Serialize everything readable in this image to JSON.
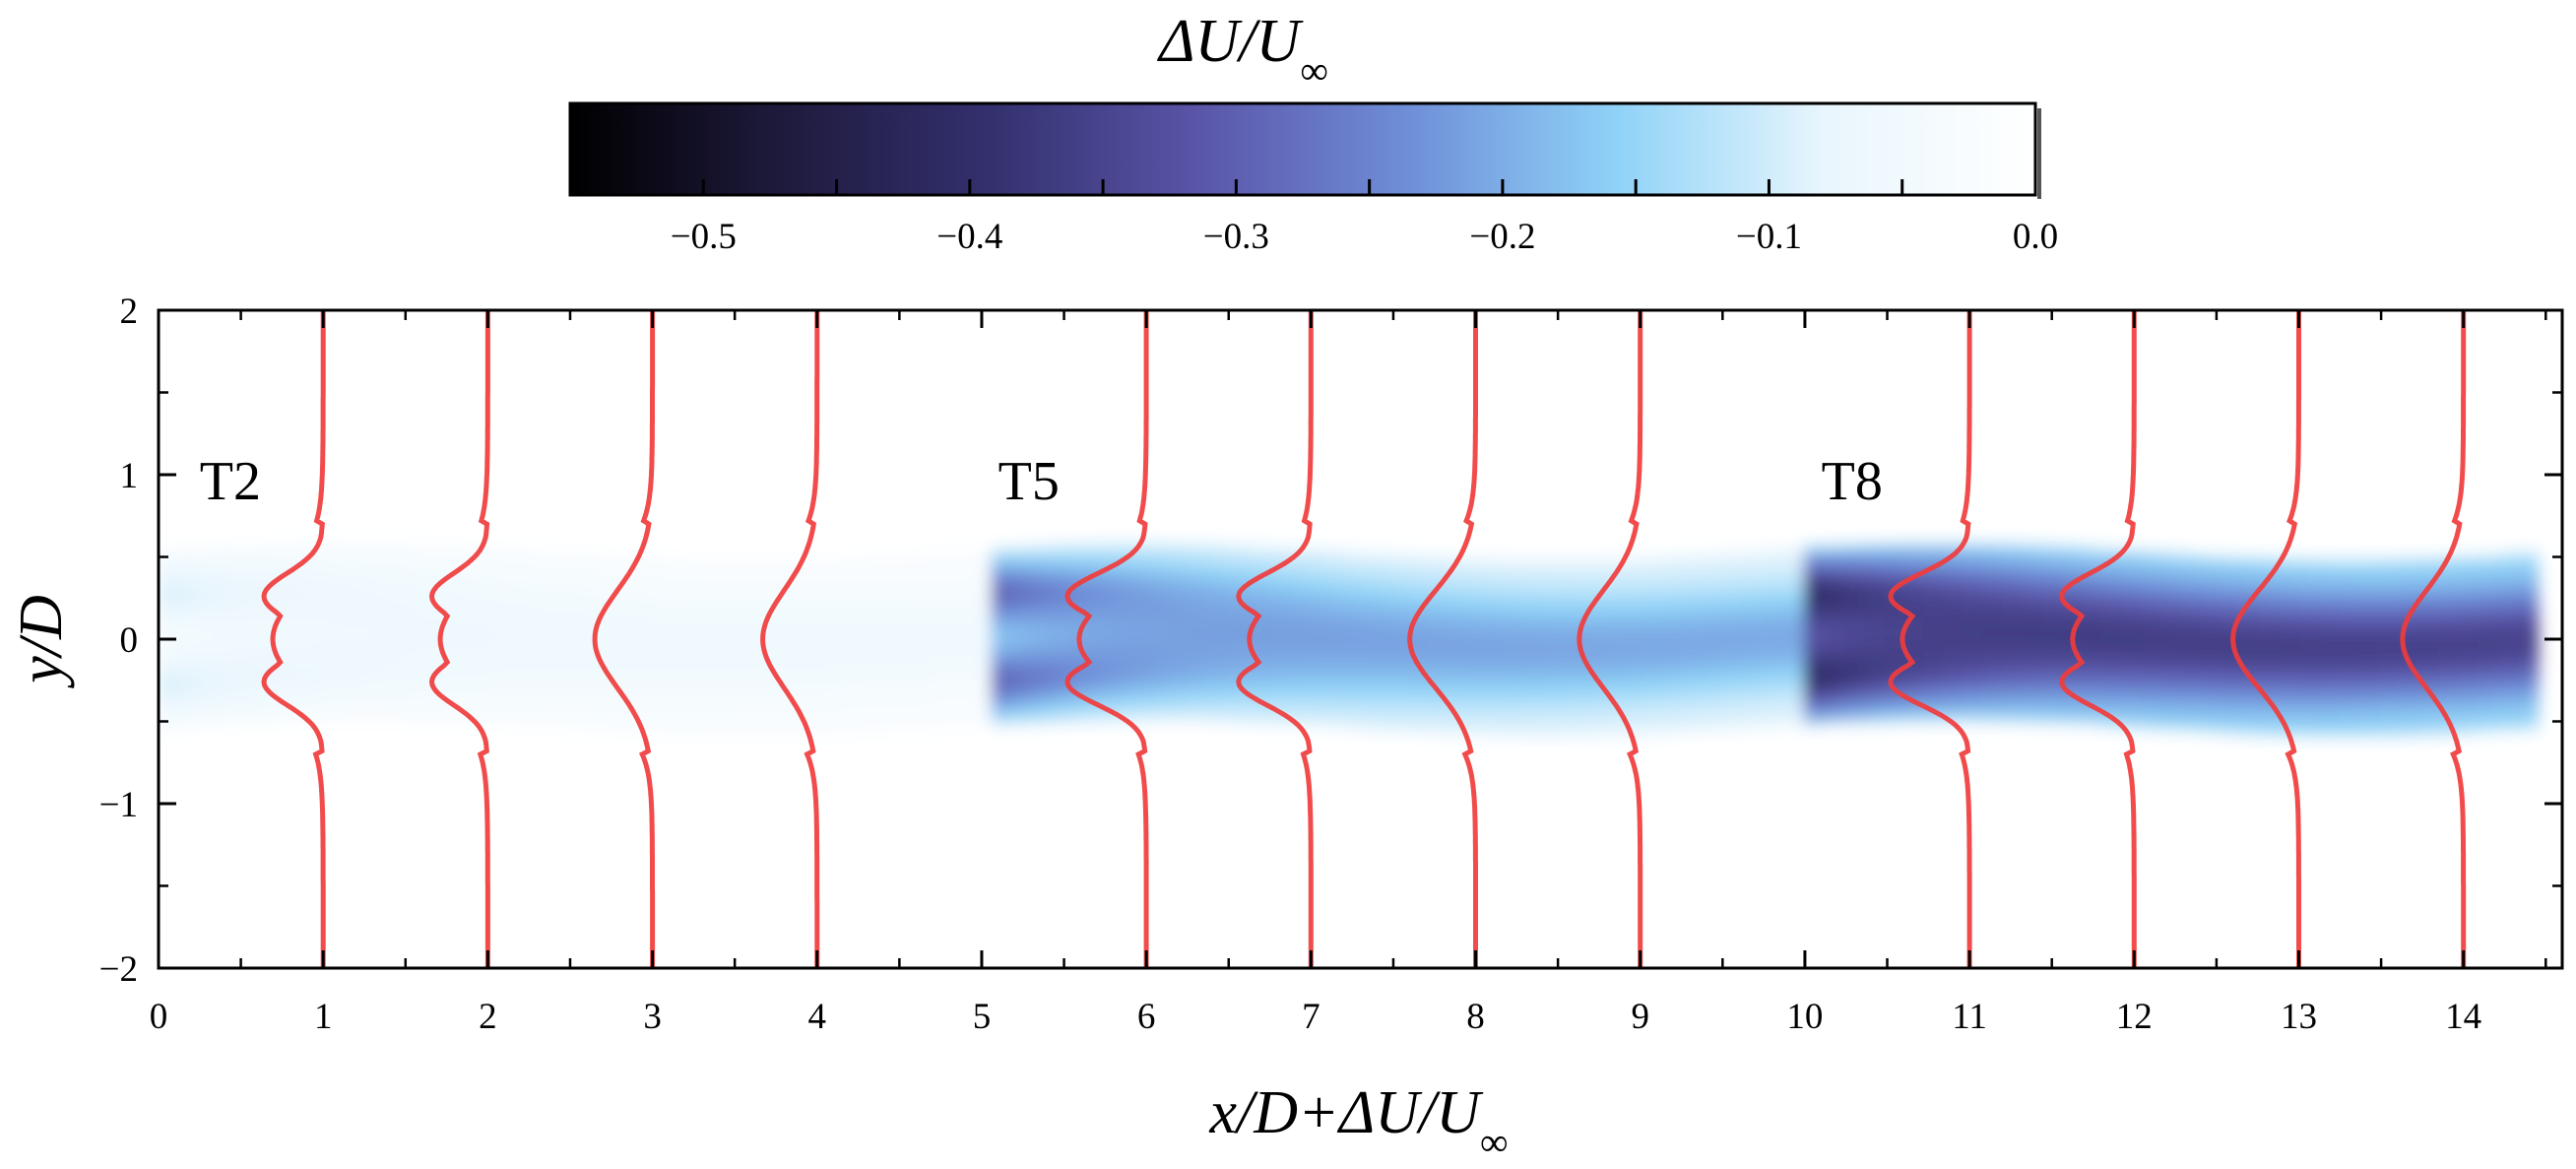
{
  "colorbar": {
    "title_prefix": "ΔU/U",
    "title_sub": "∞",
    "range": [
      -0.55,
      0.0
    ],
    "ticks": [
      -0.5,
      -0.4,
      -0.3,
      -0.2,
      -0.1,
      0.0
    ],
    "tick_labels": [
      "−0.5",
      "−0.4",
      "−0.3",
      "−0.2",
      "−0.1",
      "0.0"
    ],
    "colors": [
      "#000000",
      "#1e1a3c",
      "#33306e",
      "#5a55a8",
      "#6f8ed8",
      "#8fd2f7",
      "#e9f6fd",
      "#ffffff"
    ]
  },
  "chart_data": {
    "type": "heatmap",
    "title": "",
    "xlabel_prefix": "x/D+ΔU/U",
    "xlabel_sub": "∞",
    "ylabel": "y/D",
    "xlim": [
      0,
      14.6
    ],
    "ylim": [
      -2,
      2
    ],
    "x_ticks": [
      0,
      1,
      2,
      3,
      4,
      5,
      6,
      7,
      8,
      9,
      10,
      11,
      12,
      13,
      14
    ],
    "x_tick_labels": [
      "0",
      "1",
      "2",
      "3",
      "4",
      "5",
      "6",
      "7",
      "8",
      "9",
      "10",
      "11",
      "12",
      "13",
      "14"
    ],
    "y_ticks": [
      -2,
      -1,
      0,
      1,
      2
    ],
    "y_tick_labels": [
      "−2",
      "−1",
      "0",
      "1",
      "2"
    ],
    "grid": false,
    "annotations": [
      {
        "text": "T2",
        "x": 0.25,
        "y": 0.85
      },
      {
        "text": "T5",
        "x": 5.1,
        "y": 0.85
      },
      {
        "text": "T8",
        "x": 10.1,
        "y": 0.85
      }
    ],
    "turbines": [
      {
        "name": "T2",
        "x": 0,
        "strength": 0.35
      },
      {
        "name": "T5",
        "x": 5,
        "strength": 1.0
      },
      {
        "name": "T8",
        "x": 10,
        "strength": 1.0
      }
    ],
    "wake_region": {
      "x_start": 0,
      "x_end": 14.45,
      "half_width": 0.5
    },
    "profiles": {
      "color": "#f03c3c",
      "series": [
        {
          "x_base": 1,
          "min_deficit": -0.36,
          "twin_peak": true
        },
        {
          "x_base": 2,
          "min_deficit": -0.34,
          "twin_peak": true
        },
        {
          "x_base": 3,
          "min_deficit": -0.35,
          "twin_peak": false
        },
        {
          "x_base": 4,
          "min_deficit": -0.33,
          "twin_peak": false
        },
        {
          "x_base": 6,
          "min_deficit": -0.48,
          "twin_peak": true
        },
        {
          "x_base": 7,
          "min_deficit": -0.44,
          "twin_peak": true
        },
        {
          "x_base": 8,
          "min_deficit": -0.4,
          "twin_peak": false
        },
        {
          "x_base": 9,
          "min_deficit": -0.37,
          "twin_peak": false
        },
        {
          "x_base": 11,
          "min_deficit": -0.48,
          "twin_peak": true
        },
        {
          "x_base": 12,
          "min_deficit": -0.44,
          "twin_peak": true
        },
        {
          "x_base": 13,
          "min_deficit": -0.4,
          "twin_peak": false
        },
        {
          "x_base": 14,
          "min_deficit": -0.37,
          "twin_peak": false
        }
      ]
    }
  }
}
